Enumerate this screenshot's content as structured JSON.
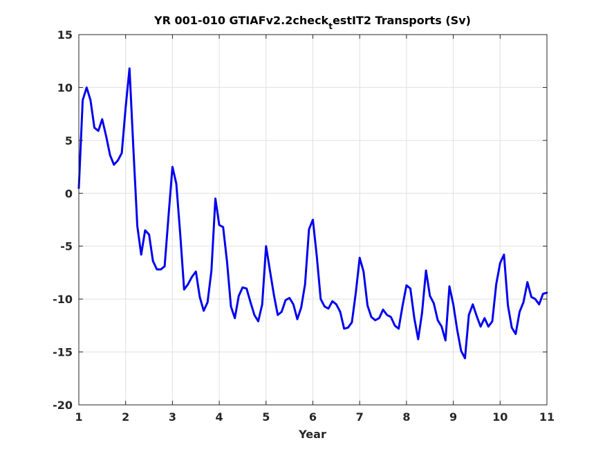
{
  "chart_data": {
    "type": "line",
    "title": "YR 001-010 GTIAFv2.2check",
    "title_subscript": "t",
    "title_suffix": "estIT2 Transports (Sv)",
    "xlabel": "Year",
    "ylabel": "",
    "xlim": [
      1,
      11
    ],
    "ylim": [
      -20,
      15
    ],
    "xticks": [
      "1",
      "2",
      "3",
      "4",
      "5",
      "6",
      "7",
      "8",
      "9",
      "10",
      "11"
    ],
    "yticks": [
      "15",
      "10",
      "5",
      "0",
      "-5",
      "-10",
      "-15",
      "-20"
    ],
    "grid": true,
    "line_color": "#0000ee",
    "series": [
      {
        "x": [
          1.0,
          1.083,
          1.167,
          1.25,
          1.333,
          1.417,
          1.5,
          1.583,
          1.667,
          1.75,
          1.833,
          1.917,
          2.0,
          2.083,
          2.167,
          2.25,
          2.333,
          2.417,
          2.5,
          2.583,
          2.667,
          2.75,
          2.833,
          2.917,
          3.0,
          3.083,
          3.167,
          3.25,
          3.333,
          3.417,
          3.5,
          3.583,
          3.667,
          3.75,
          3.833,
          3.917,
          4.0,
          4.083,
          4.167,
          4.25,
          4.333,
          4.417,
          4.5,
          4.583,
          4.667,
          4.75,
          4.833,
          4.917,
          5.0,
          5.083,
          5.167,
          5.25,
          5.333,
          5.417,
          5.5,
          5.583,
          5.667,
          5.75,
          5.833,
          5.917,
          6.0,
          6.083,
          6.167,
          6.25,
          6.333,
          6.417,
          6.5,
          6.583,
          6.667,
          6.75,
          6.833,
          6.917,
          7.0,
          7.083,
          7.167,
          7.25,
          7.333,
          7.417,
          7.5,
          7.583,
          7.667,
          7.75,
          7.833,
          7.917,
          8.0,
          8.083,
          8.167,
          8.25,
          8.333,
          8.417,
          8.5,
          8.583,
          8.667,
          8.75,
          8.833,
          8.917,
          9.0,
          9.083,
          9.167,
          9.25,
          9.333,
          9.417,
          9.5,
          9.583,
          9.667,
          9.75,
          9.833,
          9.917,
          10.0,
          10.083,
          10.167,
          10.25,
          10.333,
          10.417,
          10.5,
          10.583,
          10.667,
          10.75,
          10.833,
          10.917,
          11.0
        ],
        "values": [
          0.5,
          8.8,
          10.0,
          8.8,
          6.2,
          5.9,
          7.0,
          5.4,
          3.6,
          2.7,
          3.1,
          3.8,
          8.1,
          11.8,
          4.1,
          -3.1,
          -5.8,
          -3.5,
          -3.9,
          -6.4,
          -7.2,
          -7.2,
          -6.9,
          -2.1,
          2.5,
          0.9,
          -3.9,
          -9.1,
          -8.6,
          -7.9,
          -7.4,
          -9.8,
          -11.1,
          -10.3,
          -7.3,
          -0.5,
          -3.0,
          -3.2,
          -6.5,
          -10.7,
          -11.8,
          -9.7,
          -8.9,
          -9.0,
          -10.3,
          -11.5,
          -12.1,
          -10.5,
          -5.0,
          -7.3,
          -9.6,
          -11.5,
          -11.2,
          -10.1,
          -9.9,
          -10.5,
          -11.9,
          -10.8,
          -8.6,
          -3.4,
          -2.5,
          -5.9,
          -10.0,
          -10.7,
          -10.9,
          -10.2,
          -10.5,
          -11.2,
          -12.8,
          -12.7,
          -12.2,
          -9.4,
          -6.1,
          -7.4,
          -10.6,
          -11.7,
          -12.0,
          -11.8,
          -11.0,
          -11.5,
          -11.7,
          -12.5,
          -12.8,
          -10.6,
          -8.7,
          -9.0,
          -11.8,
          -13.8,
          -11.3,
          -7.3,
          -9.7,
          -10.4,
          -12.0,
          -12.6,
          -13.9,
          -8.8,
          -10.5,
          -12.9,
          -14.9,
          -15.6,
          -11.5,
          -10.5,
          -11.6,
          -12.6,
          -11.8,
          -12.6,
          -12.1,
          -8.6,
          -6.6,
          -5.8,
          -10.6,
          -12.7,
          -13.3,
          -11.2,
          -10.3,
          -8.4,
          -9.8,
          -10.0,
          -10.5,
          -9.5,
          -9.4
        ]
      }
    ]
  }
}
